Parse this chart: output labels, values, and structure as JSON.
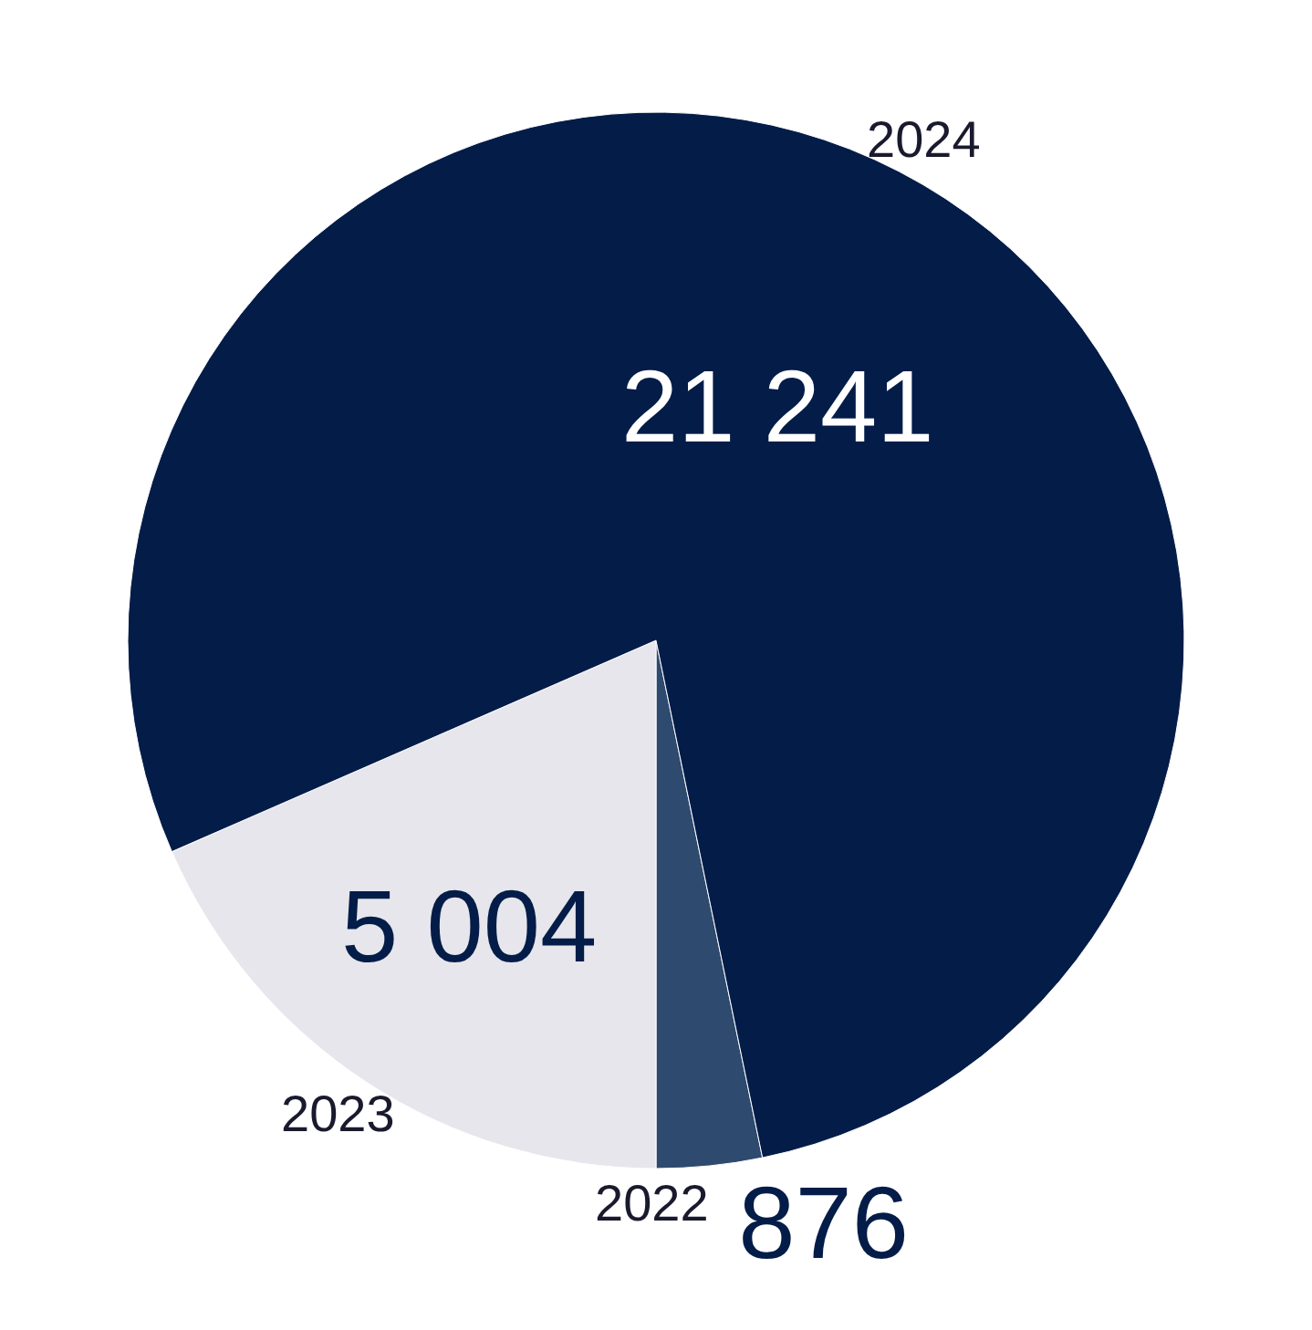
{
  "chart_data": {
    "type": "pie",
    "categories": [
      "2022",
      "2023",
      "2024"
    ],
    "values": [
      876,
      5004,
      21241
    ],
    "value_labels": [
      "876",
      "5 004",
      "21 241"
    ],
    "colors": [
      "#2e4a6e",
      "#e6e6ec",
      "#041c48"
    ]
  }
}
